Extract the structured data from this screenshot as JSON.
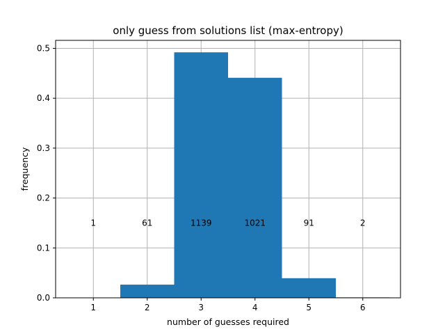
{
  "chart_data": {
    "type": "bar",
    "title": "only guess from solutions list (max-entropy)",
    "xlabel": "number of guesses required",
    "ylabel": "frequency",
    "categories": [
      1,
      2,
      3,
      4,
      5,
      6
    ],
    "values": [
      0.0004,
      0.0264,
      0.492,
      0.441,
      0.0393,
      0.0009
    ],
    "bar_labels": [
      "1",
      "61",
      "1139",
      "1021",
      "91",
      "2"
    ],
    "bar_label_y": 0.15,
    "xlim": [
      0.3,
      6.7
    ],
    "ylim": [
      0,
      0.516
    ],
    "xticks": [
      1,
      2,
      3,
      4,
      5,
      6
    ],
    "xtick_labels": [
      "1",
      "2",
      "3",
      "4",
      "5",
      "6"
    ],
    "yticks": [
      0.0,
      0.1,
      0.2,
      0.3,
      0.4,
      0.5
    ],
    "ytick_labels": [
      "0.0",
      "0.1",
      "0.2",
      "0.3",
      "0.4",
      "0.5"
    ],
    "grid": true,
    "bar_color": "#1f77b4",
    "grid_color": "#b0b0b0"
  }
}
